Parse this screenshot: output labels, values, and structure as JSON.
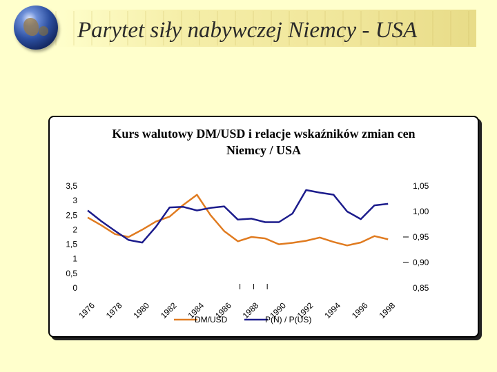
{
  "slide": {
    "title": "Parytet siły nabywczej Niemcy - USA"
  },
  "chart_data": {
    "type": "line",
    "title_line1": "Kurs walutowy DM/USD i relacje wskaźników zmian cen",
    "title_line2": "Niemcy / USA",
    "x_tick_labels": [
      "1976",
      "1978",
      "1980",
      "1982",
      "1984",
      "1986",
      "1988",
      "1990",
      "1992",
      "1994",
      "1996",
      "1998"
    ],
    "x": [
      1976,
      1977,
      1978,
      1979,
      1980,
      1981,
      1982,
      1983,
      1984,
      1985,
      1986,
      1987,
      1988,
      1989,
      1990,
      1991,
      1992,
      1993,
      1994,
      1995,
      1996,
      1997,
      1998,
      1999
    ],
    "y_left_ticks": [
      "0",
      "0,5",
      "1",
      "1,5",
      "2",
      "2,5",
      "3",
      "3,5"
    ],
    "y_left_range": [
      0,
      3.5
    ],
    "y_right_ticks": [
      "0,85",
      "0,90",
      "0,95",
      "1,00",
      "1,05"
    ],
    "y_right_range": [
      0.85,
      1.05
    ],
    "series": [
      {
        "name": "DM/USD",
        "axis": "left",
        "color": "#E07B20",
        "values": [
          2.42,
          2.15,
          1.85,
          1.75,
          2.0,
          2.28,
          2.45,
          2.85,
          3.2,
          2.5,
          1.95,
          1.6,
          1.75,
          1.7,
          1.5,
          1.55,
          1.62,
          1.73,
          1.58,
          1.46,
          1.56,
          1.78,
          1.67,
          null
        ]
      },
      {
        "name": "P(N) / P(US)",
        "axis": "right",
        "color": "#1C1C8C",
        "values": [
          1.002,
          0.981,
          0.962,
          0.944,
          0.939,
          0.97,
          1.008,
          1.009,
          1.002,
          1.007,
          1.01,
          0.984,
          0.986,
          0.979,
          0.979,
          0.996,
          1.042,
          1.037,
          1.033,
          1.0,
          0.985,
          1.012,
          1.015,
          null
        ]
      }
    ],
    "legend_position": "bottom",
    "grid": false
  }
}
